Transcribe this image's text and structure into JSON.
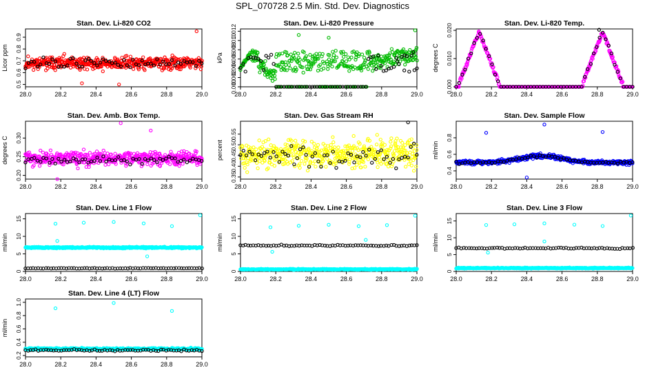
{
  "page": {
    "title": "SPL_070728  2.5 Min. Std. Dev. Diagnostics"
  },
  "chart_data": [
    {
      "type": "scatter",
      "title": "Stan. Dev. Li-820 CO2",
      "ylabel": "Licor ppm",
      "xlim": [
        28.0,
        29.0
      ],
      "ylim": [
        0.48,
        0.97
      ],
      "xticks": [
        "28.0",
        "28.2",
        "28.4",
        "28.6",
        "28.8",
        "29.0"
      ],
      "yticks": [
        "0.5",
        "0.6",
        "0.7",
        "0.8",
        "0.9"
      ],
      "ytick_values": [
        0.5,
        0.6,
        0.7,
        0.8,
        0.9
      ],
      "series": [
        {
          "color": "#ff0000",
          "seed": 11,
          "count": 520,
          "pattern": "noise",
          "base": 0.68,
          "spread": 0.09,
          "outliers": [
            [
              28.97,
              0.95
            ],
            [
              28.32,
              0.51
            ],
            [
              28.53,
              0.5
            ]
          ]
        },
        {
          "color": "#000000",
          "seed": 12,
          "count": 60,
          "pattern": "noise",
          "base": 0.68,
          "spread": 0.08,
          "outliers": []
        }
      ]
    },
    {
      "type": "scatter",
      "title": "Stan. Dev. Li-820 Pressure",
      "ylabel": "kPa",
      "xlim": [
        28.0,
        29.0
      ],
      "ylim": [
        0.0,
        0.0125
      ],
      "xticks": [
        "28.0",
        "28.2",
        "28.4",
        "28.6",
        "28.8",
        "29.0"
      ],
      "yticks": [
        "0.000",
        "0.002",
        "0.004",
        "0.006",
        "0.008",
        "0.010",
        "0.012"
      ],
      "ytick_values": [
        0,
        0.002,
        0.004,
        0.006,
        0.008,
        0.01,
        0.012
      ],
      "series": [
        {
          "color": "#00bb00",
          "seed": 21,
          "count": 420,
          "pattern": "pressure",
          "base": 0.0055,
          "spread": 0.0025,
          "outliers": [
            [
              28.99,
              0.0122
            ],
            [
              28.33,
              0.0112
            ],
            [
              28.5,
              0.0106
            ]
          ]
        },
        {
          "color": "#000000",
          "seed": 22,
          "count": 70,
          "pattern": "pressurebk",
          "base": 0.0,
          "spread": 0.0,
          "outliers": [
            [
              28.98,
              0.0075
            ],
            [
              28.93,
              0.0068
            ],
            [
              28.89,
              0.0055
            ]
          ]
        }
      ]
    },
    {
      "type": "scatter",
      "title": "Stan. Dev. Li-820 Temp.",
      "ylabel": "degrees C",
      "xlim": [
        28.0,
        29.0
      ],
      "ylim": [
        0.0,
        0.0205
      ],
      "xticks": [
        "28.0",
        "28.2",
        "28.4",
        "28.6",
        "28.8",
        "29.0"
      ],
      "yticks": [
        "0.000",
        "0.010",
        "0.020"
      ],
      "ytick_values": [
        0,
        0.01,
        0.02
      ],
      "series": [
        {
          "color": "#ff00ff",
          "seed": 31,
          "count": 420,
          "pattern": "temp",
          "base": 0.0,
          "spread": 0.0,
          "outliers": []
        },
        {
          "color": "#000000",
          "seed": 32,
          "count": 60,
          "pattern": "tempbk",
          "base": 0.0,
          "spread": 0.0,
          "outliers": [
            [
              28.81,
              0.0202
            ]
          ]
        }
      ]
    },
    {
      "type": "scatter",
      "title": "Stan. Dev. Amb. Box Temp.",
      "ylabel": "degrees C",
      "xlim": [
        28.0,
        29.0
      ],
      "ylim": [
        0.19,
        0.345
      ],
      "xticks": [
        "28.0",
        "28.2",
        "28.4",
        "28.6",
        "28.8",
        "29.0"
      ],
      "yticks": [
        "0.20",
        "0.25",
        "0.30"
      ],
      "ytick_values": [
        0.2,
        0.25,
        0.3
      ],
      "series": [
        {
          "color": "#ff00ff",
          "seed": 41,
          "count": 520,
          "pattern": "noise",
          "base": 0.245,
          "spread": 0.03,
          "outliers": [
            [
              28.54,
              0.34
            ],
            [
              28.18,
              0.19
            ],
            [
              28.71,
              0.32
            ]
          ]
        },
        {
          "color": "#000000",
          "seed": 42,
          "count": 60,
          "pattern": "noise",
          "base": 0.24,
          "spread": 0.015,
          "outliers": []
        }
      ]
    },
    {
      "type": "scatter",
      "title": "Stan. Dev. Gas Stream RH",
      "ylabel": "percent",
      "xlim": [
        28.0,
        29.0
      ],
      "ylim": [
        0.34,
        0.61
      ],
      "xticks": [
        "28.0",
        "28.2",
        "28.4",
        "28.6",
        "28.8",
        "29.0"
      ],
      "yticks": [
        "0.35",
        "0.40",
        "0.45",
        "0.50",
        "0.55"
      ],
      "ytick_values": [
        0.35,
        0.4,
        0.45,
        0.5,
        0.55
      ],
      "series": [
        {
          "color": "#ffff00",
          "seed": 51,
          "count": 480,
          "pattern": "noise",
          "base": 0.455,
          "spread": 0.11,
          "outliers": []
        },
        {
          "color": "#000000",
          "seed": 52,
          "count": 60,
          "pattern": "noise",
          "base": 0.45,
          "spread": 0.08,
          "outliers": [
            [
              28.95,
              0.605
            ]
          ]
        }
      ]
    },
    {
      "type": "scatter",
      "title": "Stan. Dev. Sample Flow",
      "ylabel": "ml/min",
      "xlim": [
        28.0,
        29.0
      ],
      "ylim": [
        0.3,
        1.0
      ],
      "xticks": [
        "28.0",
        "28.2",
        "28.4",
        "28.6",
        "28.8",
        "29.0"
      ],
      "yticks": [
        "0.4",
        "0.6",
        "0.8"
      ],
      "ytick_values": [
        0.4,
        0.6,
        0.8
      ],
      "series": [
        {
          "color": "#0000ff",
          "seed": 61,
          "count": 520,
          "pattern": "flow",
          "base": 0.5,
          "spread": 0.06,
          "outliers": [
            [
              28.17,
              0.86
            ],
            [
              28.5,
              0.96
            ],
            [
              28.83,
              0.87
            ],
            [
              28.4,
              0.32
            ]
          ]
        },
        {
          "color": "#000000",
          "seed": 62,
          "count": 60,
          "pattern": "flow",
          "base": 0.5,
          "spread": 0.04,
          "outliers": []
        }
      ]
    },
    {
      "type": "scatter",
      "title": "Stan. Dev. Line 1 Flow",
      "ylabel": "ml/min",
      "xlim": [
        28.0,
        29.0
      ],
      "ylim": [
        0,
        16.5
      ],
      "xticks": [
        "28.0",
        "28.2",
        "28.4",
        "28.6",
        "28.8",
        "29.0"
      ],
      "yticks": [
        "0",
        "5",
        "10",
        "15"
      ],
      "ytick_values": [
        0,
        5,
        10,
        15
      ],
      "series": [
        {
          "color": "#00ffff",
          "seed": 71,
          "count": 520,
          "pattern": "band",
          "base": 6.8,
          "spread": 0.6,
          "outliers": [
            [
              28.17,
              13.6
            ],
            [
              28.33,
              13.9
            ],
            [
              28.5,
              14.1
            ],
            [
              28.67,
              13.7
            ],
            [
              28.83,
              12.9
            ],
            [
              28.99,
              16.0
            ],
            [
              28.18,
              8.7
            ],
            [
              28.69,
              4.3
            ]
          ]
        },
        {
          "color": "#000000",
          "seed": 72,
          "count": 70,
          "pattern": "band",
          "base": 0.9,
          "spread": 0.3,
          "outliers": []
        }
      ]
    },
    {
      "type": "scatter",
      "title": "Stan. Dev. Line 2 Flow",
      "ylabel": "ml/min",
      "xlim": [
        28.0,
        29.0
      ],
      "ylim": [
        0,
        16.5
      ],
      "xticks": [
        "28.0",
        "28.2",
        "28.4",
        "28.6",
        "28.8",
        "29.0"
      ],
      "yticks": [
        "0",
        "5",
        "10",
        "15"
      ],
      "ytick_values": [
        0,
        5,
        10,
        15
      ],
      "series": [
        {
          "color": "#00ffff",
          "seed": 81,
          "count": 520,
          "pattern": "band",
          "base": 0.6,
          "spread": 0.4,
          "outliers": [
            [
              28.17,
              12.6
            ],
            [
              28.33,
              13.0
            ],
            [
              28.5,
              13.3
            ],
            [
              28.67,
              12.9
            ],
            [
              28.83,
              13.2
            ],
            [
              28.99,
              15.9
            ],
            [
              28.71,
              9.0
            ],
            [
              28.18,
              5.6
            ]
          ]
        },
        {
          "color": "#000000",
          "seed": 82,
          "count": 70,
          "pattern": "band",
          "base": 7.4,
          "spread": 0.5,
          "outliers": []
        }
      ]
    },
    {
      "type": "scatter",
      "title": "Stan. Dev. Line 3 Flow",
      "ylabel": "ml/min",
      "xlim": [
        28.0,
        29.0
      ],
      "ylim": [
        0,
        17.2
      ],
      "xticks": [
        "28.0",
        "28.2",
        "28.4",
        "28.6",
        "28.8",
        "29.0"
      ],
      "yticks": [
        "0",
        "5",
        "10",
        "15"
      ],
      "ytick_values": [
        0,
        5,
        10,
        15
      ],
      "series": [
        {
          "color": "#00ffff",
          "seed": 91,
          "count": 520,
          "pattern": "band",
          "base": 1.0,
          "spread": 0.4,
          "outliers": [
            [
              28.17,
              13.8
            ],
            [
              28.33,
              14.0
            ],
            [
              28.5,
              14.3
            ],
            [
              28.67,
              13.9
            ],
            [
              28.83,
              13.5
            ],
            [
              28.99,
              16.6
            ],
            [
              28.18,
              5.6
            ],
            [
              28.5,
              8.9
            ]
          ]
        },
        {
          "color": "#000000",
          "seed": 92,
          "count": 70,
          "pattern": "band",
          "base": 6.9,
          "spread": 0.6,
          "outliers": []
        }
      ]
    },
    {
      "type": "scatter",
      "title": "Stan. Dev. Line 4 (LT) Flow",
      "ylabel": "ml/min",
      "xlim": [
        28.0,
        29.0
      ],
      "ylim": [
        0.18,
        1.05
      ],
      "xticks": [
        "28.0",
        "28.2",
        "28.4",
        "28.6",
        "28.8",
        "29.0"
      ],
      "yticks": [
        "0.2",
        "0.4",
        "0.6",
        "0.8",
        "1.0"
      ],
      "ytick_values": [
        0.2,
        0.4,
        0.6,
        0.8,
        1.0
      ],
      "series": [
        {
          "color": "#00ffff",
          "seed": 101,
          "count": 520,
          "pattern": "band",
          "base": 0.3,
          "spread": 0.04,
          "outliers": [
            [
              28.17,
              0.91
            ],
            [
              28.5,
              0.99
            ],
            [
              28.83,
              0.87
            ]
          ]
        },
        {
          "color": "#000000",
          "seed": 102,
          "count": 70,
          "pattern": "band",
          "base": 0.28,
          "spread": 0.035,
          "outliers": []
        }
      ]
    }
  ]
}
